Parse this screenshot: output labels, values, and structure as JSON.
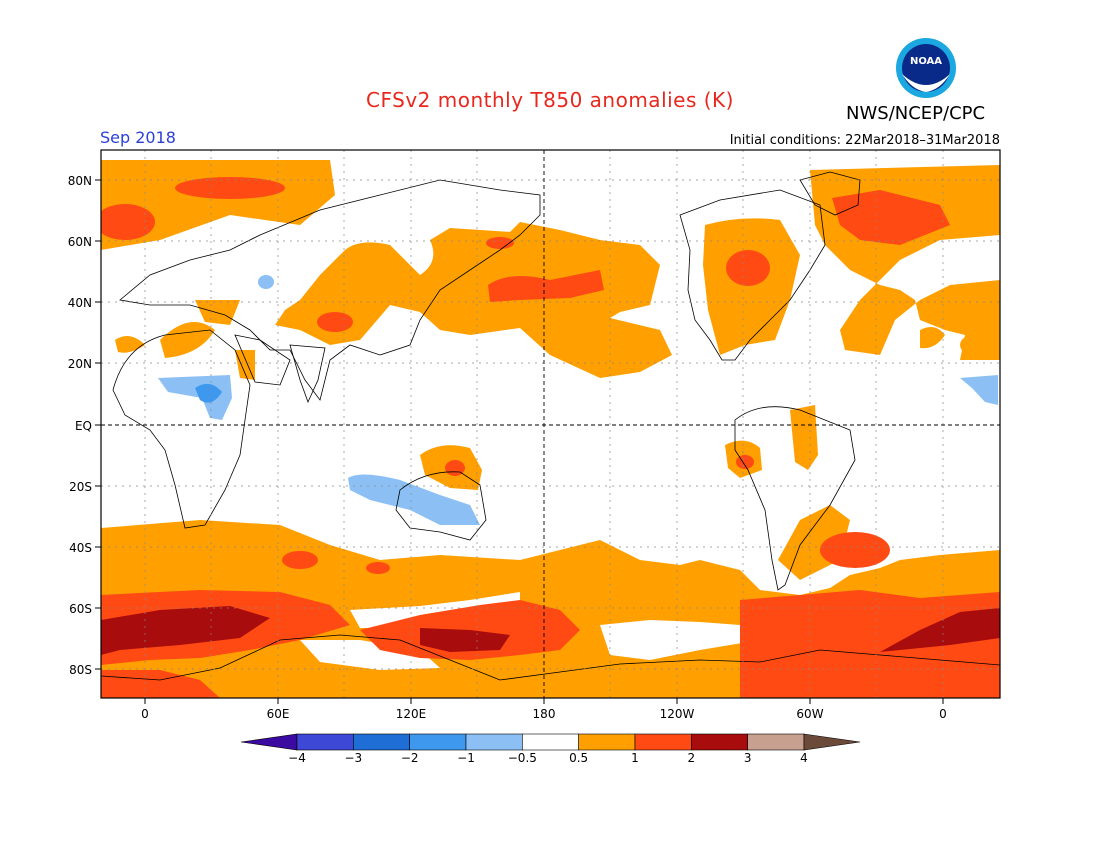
{
  "header": {
    "title": "CFSv2 monthly T850 anomalies (K)",
    "organization": "NWS/NCEP/CPC",
    "logo_text": "NOAA",
    "month": "Sep 2018",
    "initial_conditions": "Initial conditions: 22Mar2018–31Mar2018"
  },
  "map": {
    "lat_labels": [
      "80N",
      "60N",
      "40N",
      "20N",
      "EQ",
      "20S",
      "40S",
      "60S",
      "80S"
    ],
    "lon_labels": [
      "0",
      "60E",
      "120E",
      "180",
      "120W",
      "60W",
      "0"
    ]
  },
  "colorbar": {
    "labels": [
      "−4",
      "−3",
      "−2",
      "−1",
      "−0.5",
      "0.5",
      "1",
      "2",
      "3",
      "4"
    ],
    "colors": [
      "#3b0aa0",
      "#3d48d6",
      "#1e6ed6",
      "#3d98ee",
      "#8cc0f5",
      "#ffffff",
      "#ffa000",
      "#ff4a14",
      "#a80c0c",
      "#c8a090",
      "#6b4a3a"
    ]
  },
  "colors": {
    "title": "#e8281e",
    "month": "#2a3fd6",
    "orange": "#ffa000",
    "red": "#ff4a14",
    "darkred": "#a80c0c",
    "lightblue": "#8cc0f5",
    "blue": "#3d98ee"
  }
}
